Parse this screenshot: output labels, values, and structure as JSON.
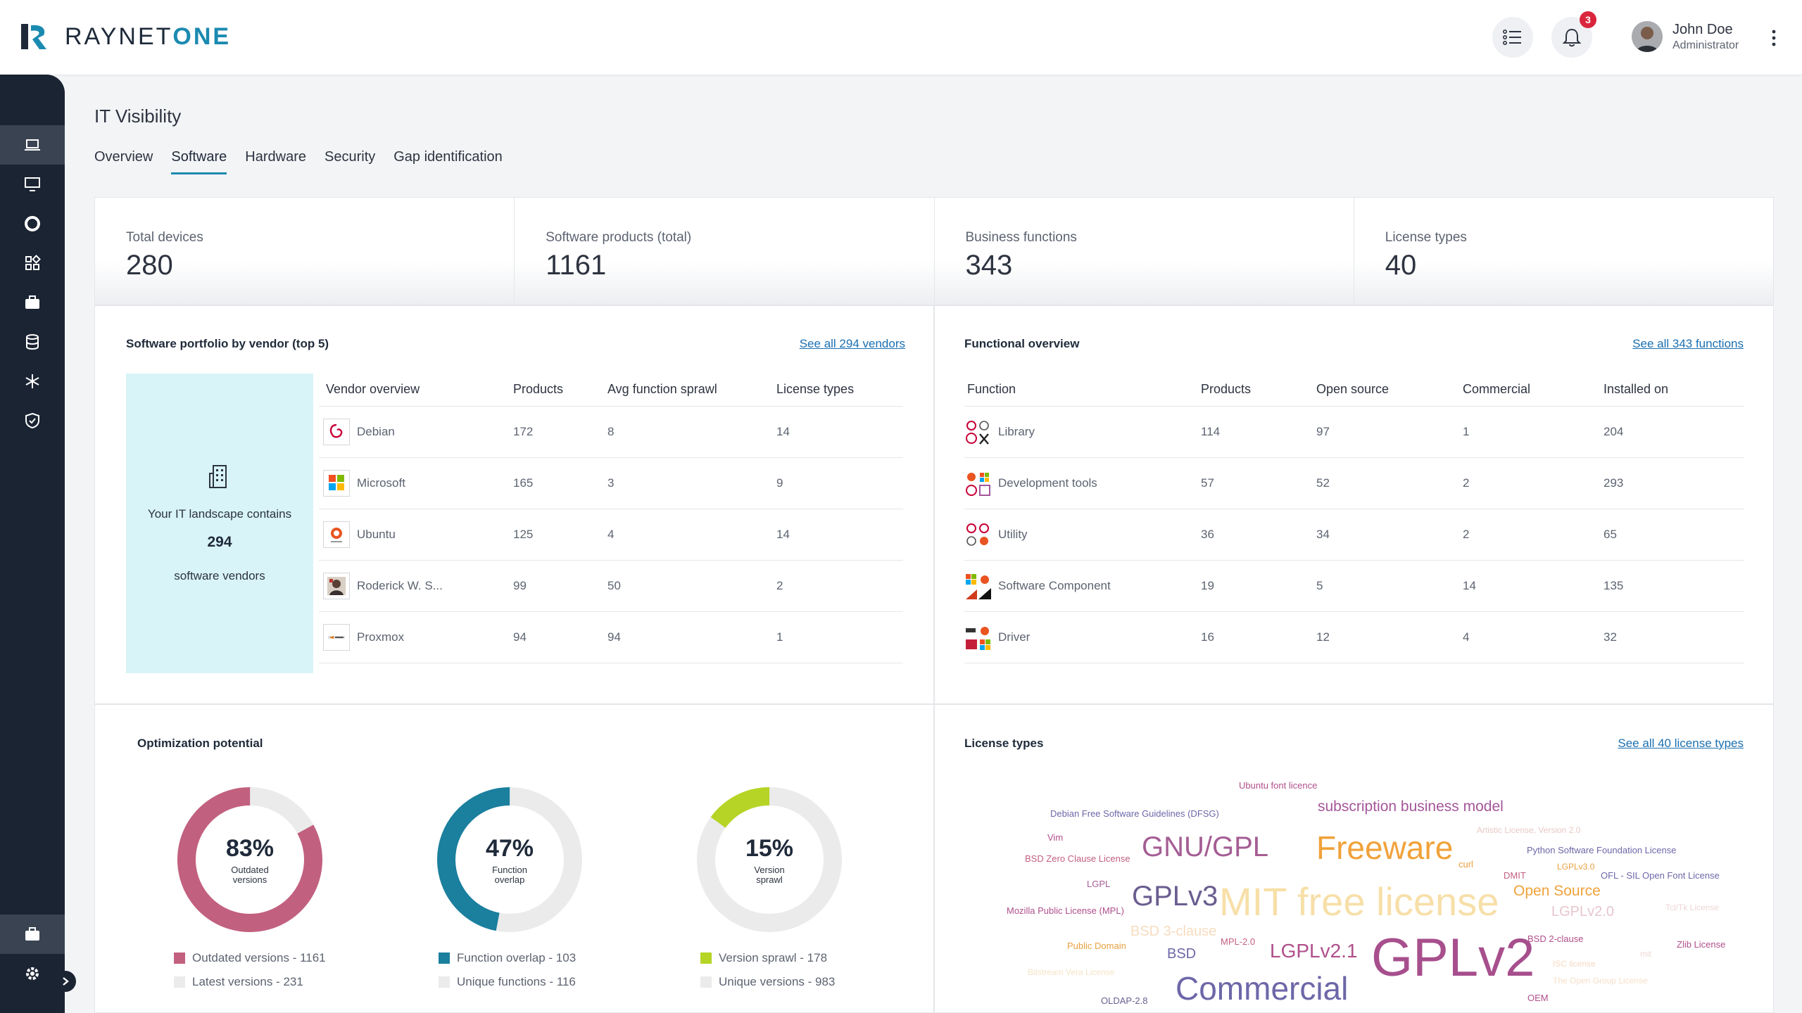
{
  "app": {
    "logo_text_a": "RAYNET",
    "logo_text_b": "ONE",
    "notification_count": "3",
    "user": {
      "name": "John Doe",
      "role": "Administrator"
    }
  },
  "sidebar": {
    "items": [
      {
        "icon": "laptop-icon",
        "active": true
      },
      {
        "icon": "monitor-icon",
        "active": false
      },
      {
        "icon": "lifebuoy-icon",
        "active": false
      },
      {
        "icon": "apps-icon",
        "active": false
      },
      {
        "icon": "briefcase-icon",
        "active": false
      },
      {
        "icon": "database-icon",
        "active": false
      },
      {
        "icon": "snowflake-icon",
        "active": false
      },
      {
        "icon": "shield-icon",
        "active": false
      }
    ],
    "bottom": [
      {
        "icon": "briefcase-icon",
        "active": true
      },
      {
        "icon": "gear-icon",
        "active": false
      }
    ]
  },
  "page": {
    "title": "IT Visibility",
    "tabs": [
      "Overview",
      "Software",
      "Hardware",
      "Security",
      "Gap identification"
    ],
    "active_tab": "Software"
  },
  "kpis": [
    {
      "label": "Total devices",
      "value": "280"
    },
    {
      "label": "Software products (total)",
      "value": "1161"
    },
    {
      "label": "Business functions",
      "value": "343"
    },
    {
      "label": "License types",
      "value": "40"
    }
  ],
  "vendors": {
    "title": "Software portfolio by vendor (top 5)",
    "see_all": "See all 294 vendors",
    "summary": {
      "line1": "Your IT landscape contains",
      "count": "294",
      "line2": "software vendors"
    },
    "columns": [
      "Vendor overview",
      "Products",
      "Avg function sprawl",
      "License types"
    ],
    "rows": [
      {
        "name": "Debian",
        "products": "172",
        "sprawl": "8",
        "licenses": "14",
        "logo": "debian"
      },
      {
        "name": "Microsoft",
        "products": "165",
        "sprawl": "3",
        "licenses": "9",
        "logo": "microsoft"
      },
      {
        "name": "Ubuntu",
        "products": "125",
        "sprawl": "4",
        "licenses": "14",
        "logo": "ubuntu"
      },
      {
        "name": "Roderick W. S...",
        "products": "99",
        "sprawl": "50",
        "licenses": "2",
        "logo": "portrait"
      },
      {
        "name": "Proxmox",
        "products": "94",
        "sprawl": "94",
        "licenses": "1",
        "logo": "proxmox"
      }
    ]
  },
  "functions": {
    "title": "Functional overview",
    "see_all": "See all 343 functions",
    "columns": [
      "Function",
      "Products",
      "Open source",
      "Commercial",
      "Installed on"
    ],
    "rows": [
      {
        "name": "Library",
        "products": "114",
        "open_source": "97",
        "commercial": "1",
        "installed": "204"
      },
      {
        "name": "Development tools",
        "products": "57",
        "open_source": "52",
        "commercial": "2",
        "installed": "293"
      },
      {
        "name": "Utility",
        "products": "36",
        "open_source": "34",
        "commercial": "2",
        "installed": "65"
      },
      {
        "name": "Software Component",
        "products": "19",
        "open_source": "5",
        "commercial": "14",
        "installed": "135"
      },
      {
        "name": "Driver",
        "products": "16",
        "open_source": "12",
        "commercial": "4",
        "installed": "32"
      }
    ]
  },
  "optimization": {
    "title": "Optimization potential",
    "donuts": [
      {
        "pct": "83%",
        "fraction": 0.83,
        "label1": "Outdated",
        "label2": "versions",
        "color": "#c2607f",
        "legend_a": "Outdated versions - 1161",
        "legend_b": "Latest versions - 231"
      },
      {
        "pct": "47%",
        "fraction": 0.47,
        "label1": "Function",
        "label2": "overlap",
        "color": "#1b7f9e",
        "legend_a": "Function overlap - 103",
        "legend_b": "Unique functions - 116"
      },
      {
        "pct": "15%",
        "fraction": 0.15,
        "label1": "Version",
        "label2": "sprawl",
        "color": "#b5d425",
        "legend_a": "Version sprawl - 178",
        "legend_b": "Unique versions - 983"
      }
    ],
    "track_color": "#ebebeb"
  },
  "licenses": {
    "title": "License types",
    "see_all": "See all 40 license types",
    "words": [
      {
        "text": "Ubuntu font licence",
        "color": "#b04f8b"
      },
      {
        "text": "Debian Free Software Guidelines (DFSG)",
        "color": "#6d67a8"
      },
      {
        "text": "subscription business model",
        "color": "#a4569a"
      },
      {
        "text": "Artistic License, Version 2.0",
        "color": "#e8c9c4"
      },
      {
        "text": "Vim",
        "color": "#b04f8b"
      },
      {
        "text": "GNU/GPL",
        "color": "#a45d93"
      },
      {
        "text": "Freeware",
        "color": "#f0a23a"
      },
      {
        "text": "Python Software Foundation License",
        "color": "#6d67a8"
      },
      {
        "text": "BSD Zero Clause License",
        "color": "#c2607f"
      },
      {
        "text": "curl",
        "color": "#e8a040"
      },
      {
        "text": "LGPLv3.0",
        "color": "#e8a040"
      },
      {
        "text": "DMIT",
        "color": "#c2607f"
      },
      {
        "text": "OFL - SIL Open Font License",
        "color": "#6d67a8"
      },
      {
        "text": "LGPL",
        "color": "#a45d93"
      },
      {
        "text": "GPLv3",
        "color": "#6a5d8f"
      },
      {
        "text": "MIT free license",
        "color": "#f7dfa8"
      },
      {
        "text": "Open Source",
        "color": "#f0a23a"
      },
      {
        "text": "Mozilla Public License (MPL)",
        "color": "#b04f8b"
      },
      {
        "text": "LGPLv2.0",
        "color": "#e6c6cd"
      },
      {
        "text": "Tcl/Tk License",
        "color": "#eed6d6"
      },
      {
        "text": "BSD 3-clause",
        "color": "#f7dcbf"
      },
      {
        "text": "Public Domain",
        "color": "#e8a040"
      },
      {
        "text": "MPL-2.0",
        "color": "#c2607f"
      },
      {
        "text": "BSD",
        "color": "#6d67a8"
      },
      {
        "text": "LGPLv2.1",
        "color": "#b04f8b"
      },
      {
        "text": "GPLv2",
        "color": "#a74f8d"
      },
      {
        "text": "BSD 2-clause",
        "color": "#b04f8b"
      },
      {
        "text": "Zlib License",
        "color": "#b04f8b"
      },
      {
        "text": "mit",
        "color": "#eed6d6"
      },
      {
        "text": "ISC license",
        "color": "#f6d8c0"
      },
      {
        "text": "Bitstream Vera License",
        "color": "#f5e3c6"
      },
      {
        "text": "The Open Group License",
        "color": "#f6dfc8"
      },
      {
        "text": "Commercial",
        "color": "#6d67a8"
      },
      {
        "text": "OLDAP-2.8",
        "color": "#6a5d8f"
      },
      {
        "text": "OEM",
        "color": "#b04f8b"
      }
    ]
  }
}
